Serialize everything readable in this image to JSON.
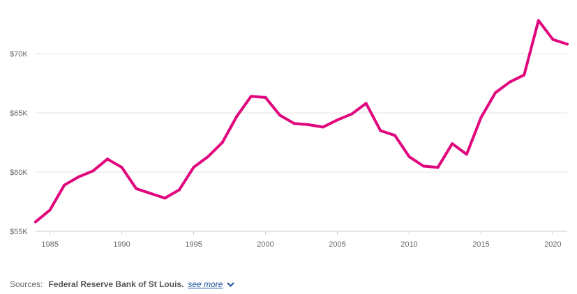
{
  "chart_data": {
    "type": "line",
    "title": "",
    "xlabel": "",
    "ylabel": "",
    "x": [
      1984,
      1985,
      1986,
      1987,
      1988,
      1989,
      1990,
      1991,
      1992,
      1993,
      1994,
      1995,
      1996,
      1997,
      1998,
      1999,
      2000,
      2001,
      2002,
      2003,
      2004,
      2005,
      2006,
      2007,
      2008,
      2009,
      2010,
      2011,
      2012,
      2013,
      2014,
      2015,
      2016,
      2017,
      2018,
      2019,
      2020,
      2021
    ],
    "series": [
      {
        "values": [
          55800,
          56800,
          58900,
          59600,
          60100,
          61100,
          60400,
          58600,
          58200,
          57800,
          58500,
          60400,
          61300,
          62500,
          64700,
          66400,
          66300,
          64800,
          64100,
          64000,
          63800,
          64400,
          64900,
          65800,
          63500,
          63100,
          61300,
          60500,
          60400,
          62400,
          61500,
          64600,
          66700,
          67600,
          68200,
          72800,
          71200,
          70800
        ]
      }
    ],
    "xlim": [
      1984,
      2021
    ],
    "ylim": [
      55000,
      73000
    ],
    "xticks": [
      1985,
      1990,
      1995,
      2000,
      2005,
      2010,
      2015,
      2020
    ],
    "xtick_labels": [
      "1985",
      "1990",
      "1995",
      "2000",
      "2005",
      "2010",
      "2015",
      "2020"
    ],
    "yticks": [
      55000,
      60000,
      65000,
      70000
    ],
    "ytick_labels": [
      "$55K",
      "$60K",
      "$65K",
      "$70K"
    ],
    "grid": "horizontal",
    "line_color": "#e0067d",
    "grid_color": "#e6e6e6",
    "axis_color": "#cccccc"
  },
  "sources": {
    "label": "Sources:",
    "name": "Federal Reserve Bank of St Louis.",
    "see_more": "see more",
    "icon": "chevron-down-icon"
  }
}
